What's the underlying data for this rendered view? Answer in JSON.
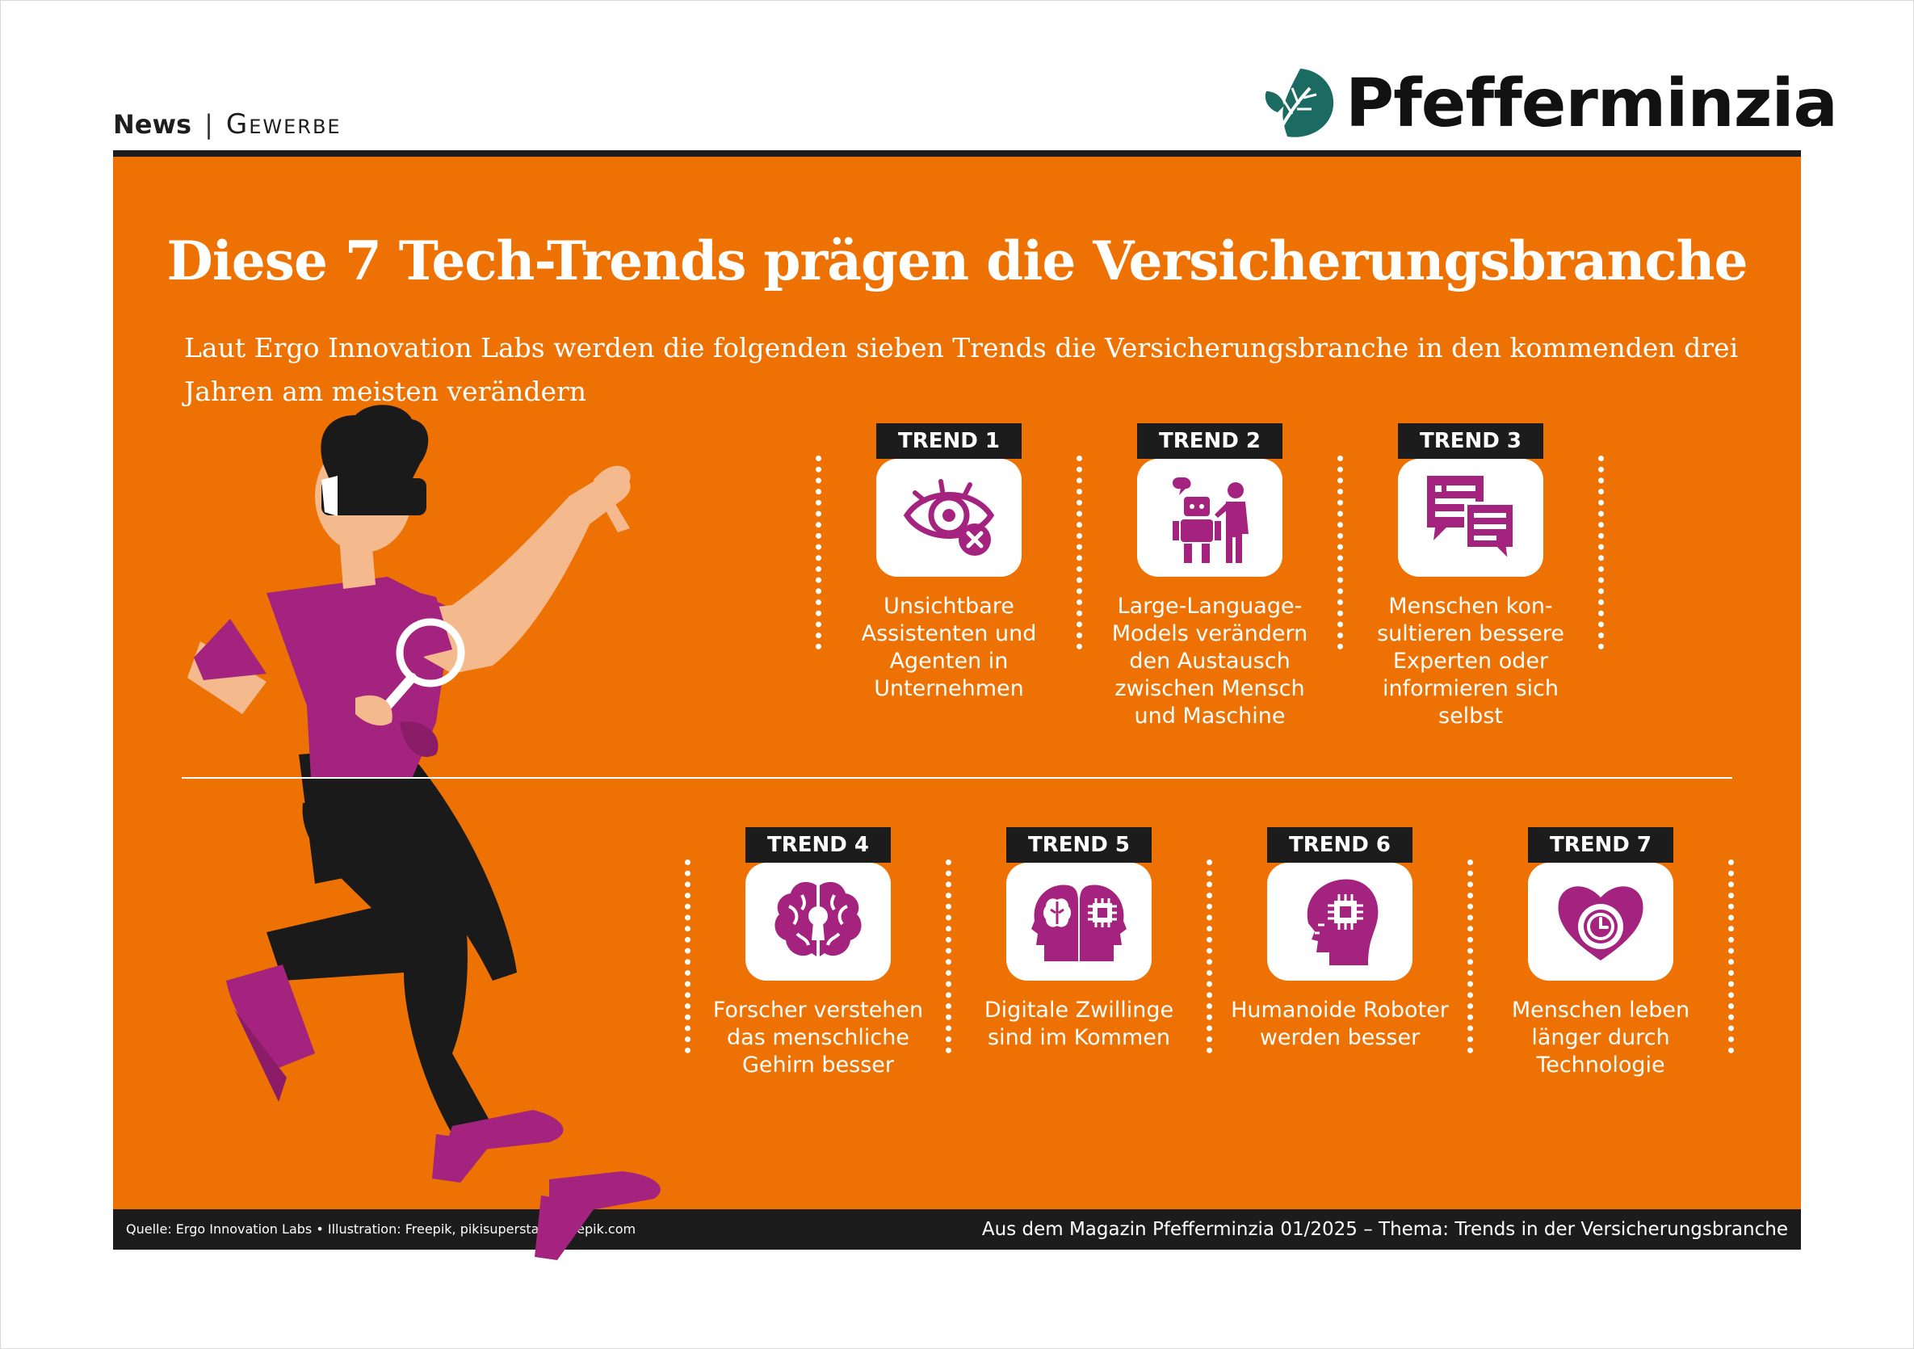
{
  "header": {
    "section": "News",
    "separator": "|",
    "category": "Gewerbe",
    "brand": "Pfefferminzia"
  },
  "infographic": {
    "title": "Diese 7 Tech-Trends prägen die Versicherungsbranche",
    "subtitle": "Laut Ergo Innovation Labs werden die folgenden sieben Trends die Versicherungsbranche in den kommenden drei Jahren am meisten verändern",
    "trends": [
      {
        "label": "TREND 1",
        "caption": "Unsichtbare Assistenten und Agenten in Unternehmen",
        "icon": "invisible-eye-icon"
      },
      {
        "label": "TREND 2",
        "caption": "Large-Language-Models verändern den Austausch zwischen Mensch und Maschine",
        "icon": "robot-human-icon"
      },
      {
        "label": "TREND 3",
        "caption": "Menschen kon-sultieren bessere Experten oder informieren sich selbst",
        "icon": "chat-documents-icon"
      },
      {
        "label": "TREND 4",
        "caption": "Forscher verstehen das menschliche Gehirn besser",
        "icon": "brain-keyhole-icon"
      },
      {
        "label": "TREND 5",
        "caption": "Digitale Zwillinge sind im Kommen",
        "icon": "digital-twins-icon"
      },
      {
        "label": "TREND 6",
        "caption": "Humanoide Roboter werden besser",
        "icon": "humanoid-chip-head-icon"
      },
      {
        "label": "TREND 7",
        "caption": "Menschen leben länger durch Technologie",
        "icon": "heart-clock-icon"
      }
    ],
    "colors": {
      "background": "#ee7203",
      "accent": "#a4237e",
      "dark": "#1c1c1c",
      "brand_green": "#1b6b63"
    }
  },
  "footer": {
    "credits": "Quelle: Ergo Innovation Labs • Illustration: Freepik, pikisuperstar - Freepik.com",
    "source": "Aus dem Magazin Pfefferminzia 01/2025 – Thema: Trends in der Versicherungsbranche"
  }
}
